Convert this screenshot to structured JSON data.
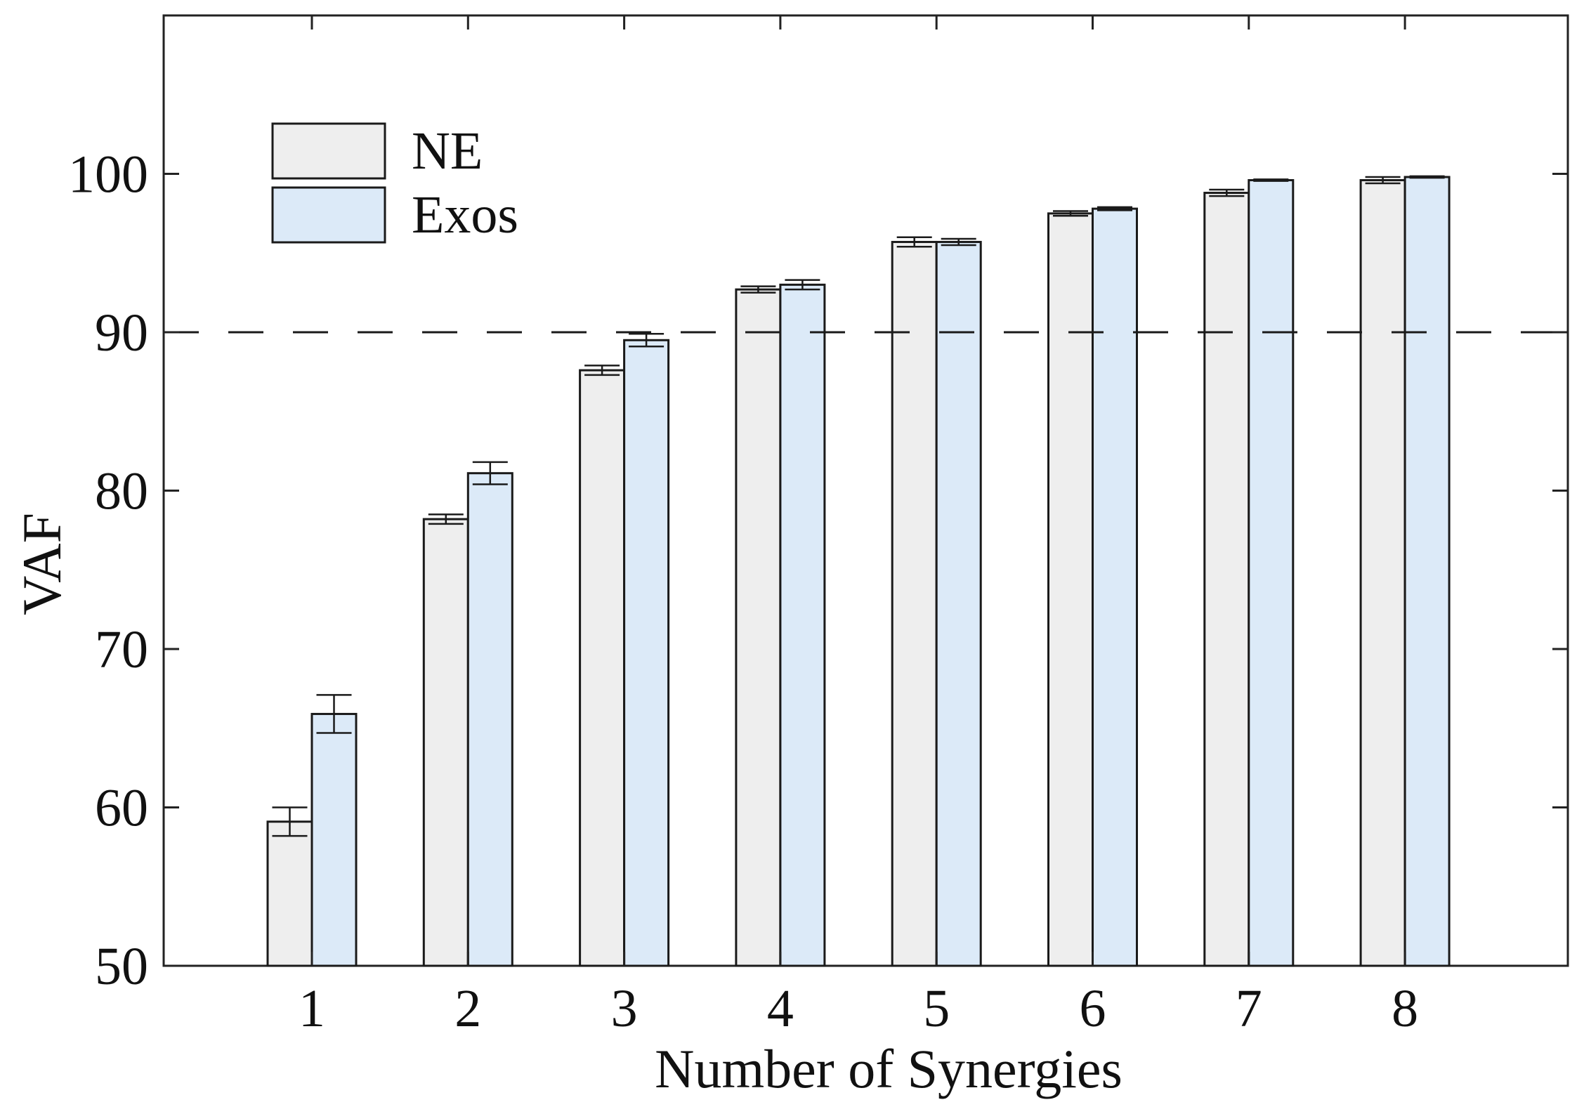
{
  "chart_data": {
    "type": "bar",
    "xlabel": "Number of Synergies",
    "ylabel": "VAF",
    "ylim": [
      50,
      110
    ],
    "yticks": [
      50,
      60,
      70,
      80,
      90,
      100
    ],
    "categories": [
      "1",
      "2",
      "3",
      "4",
      "5",
      "6",
      "7",
      "8"
    ],
    "series": [
      {
        "name": "NE",
        "color": "#eeeeee",
        "values": [
          59.1,
          78.2,
          87.6,
          92.7,
          95.7,
          97.5,
          98.8,
          99.6
        ],
        "errors": [
          0.9,
          0.3,
          0.3,
          0.2,
          0.3,
          0.15,
          0.2,
          0.2
        ]
      },
      {
        "name": "Exos",
        "color": "#dceaf8",
        "values": [
          65.9,
          81.1,
          89.5,
          93.0,
          95.7,
          97.8,
          99.6,
          99.8
        ],
        "errors": [
          1.2,
          0.7,
          0.4,
          0.3,
          0.2,
          0.1,
          0.05,
          0.05
        ]
      }
    ],
    "reference_line": {
      "y": 90,
      "style": "dashed"
    },
    "legend_position": "top-left",
    "grid": false
  }
}
